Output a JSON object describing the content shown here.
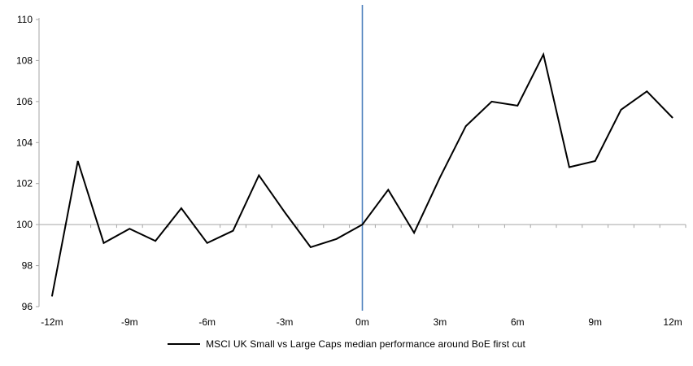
{
  "chart_data": {
    "type": "line",
    "title": "",
    "x_months": [
      -12,
      -11,
      -10,
      -9,
      -8,
      -7,
      -6,
      -5,
      -4,
      -3,
      -2,
      -1,
      0,
      1,
      2,
      3,
      4,
      5,
      6,
      7,
      8,
      9,
      10,
      11,
      12
    ],
    "series": [
      {
        "name": "MSCI UK Small vs Large Caps median performance around BoE first cut",
        "values": [
          96.5,
          103.1,
          99.1,
          99.8,
          99.2,
          100.8,
          99.1,
          99.7,
          102.4,
          100.6,
          98.9,
          99.3,
          100.0,
          101.7,
          99.6,
          102.3,
          104.8,
          106.0,
          105.8,
          108.3,
          102.8,
          103.1,
          105.6,
          106.5,
          105.2
        ]
      }
    ],
    "ylim": [
      96,
      110
    ],
    "y_ticks": [
      96,
      98,
      100,
      102,
      104,
      106,
      108,
      110
    ],
    "x_axis_labels": [
      {
        "month": -12,
        "label": "-12m"
      },
      {
        "month": -9,
        "label": "-9m"
      },
      {
        "month": -6,
        "label": "-6m"
      },
      {
        "month": -3,
        "label": "-3m"
      },
      {
        "month": 0,
        "label": "0m"
      },
      {
        "month": 3,
        "label": "3m"
      },
      {
        "month": 6,
        "label": "6m"
      },
      {
        "month": 9,
        "label": "9m"
      },
      {
        "month": 12,
        "label": "12m"
      }
    ],
    "baseline_value": 100,
    "event_line_month": 0,
    "grid": "baseline-only",
    "legend_position": "bottom",
    "colors": {
      "series_line": "#000000",
      "axis": "#a6a6a6",
      "baseline": "#a6a6a6",
      "event_line": "#4f81bd",
      "tick_label": "#000000"
    }
  },
  "legend": {
    "label": "MSCI UK Small vs Large Caps median performance around BoE first cut"
  }
}
